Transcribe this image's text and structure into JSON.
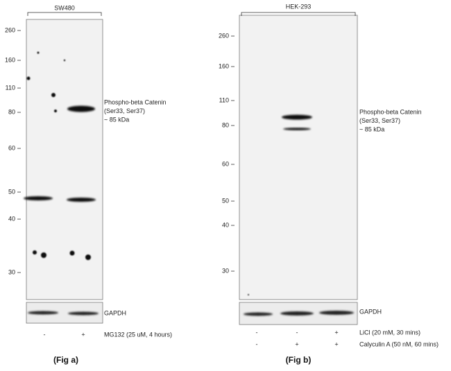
{
  "panels": [
    {
      "cell_line": "SW480",
      "markers": [
        260,
        160,
        110,
        80,
        60,
        50,
        40,
        30
      ],
      "target": [
        "Phospho-beta Catenin",
        "(Ser33, Ser37)",
        "~ 85 kDa"
      ],
      "loading_control": "GAPDH",
      "treatments": [
        {
          "lanes": [
            "-",
            "+"
          ],
          "label": "MG132 (25 uM, 4 hours)"
        }
      ],
      "caption": "(Fig a)"
    },
    {
      "cell_line": "HEK-293",
      "markers": [
        260,
        160,
        110,
        80,
        60,
        50,
        40,
        30
      ],
      "target": [
        "Phospho-beta Catenin",
        "(Ser33, Ser37)",
        "~ 85 kDa"
      ],
      "loading_control": "GAPDH",
      "treatments": [
        {
          "lanes": [
            "-",
            "-",
            "+"
          ],
          "label": "LiCl (20 mM, 30 mins)"
        },
        {
          "lanes": [
            "-",
            "+",
            "+"
          ],
          "label": "Calyculin A (50 nM, 60 mins)"
        }
      ],
      "caption": "(Fig b)"
    }
  ]
}
